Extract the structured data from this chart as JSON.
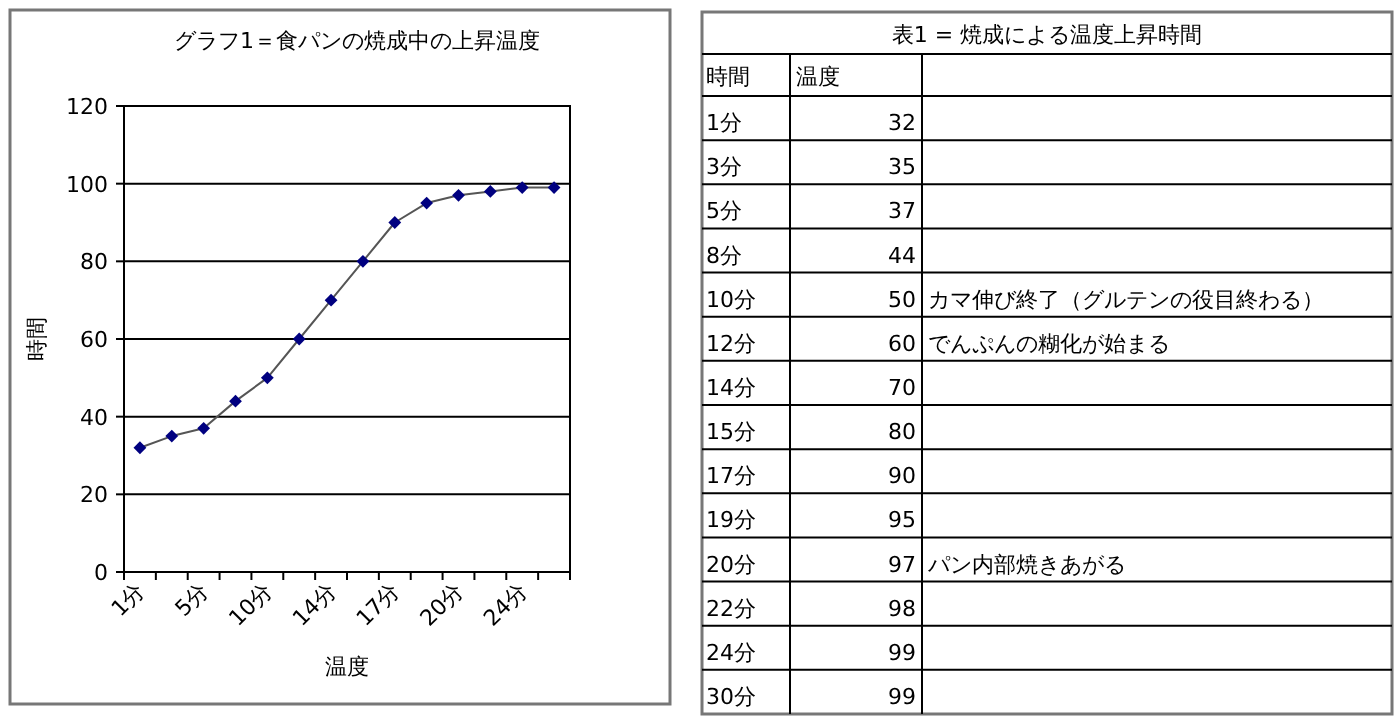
{
  "chart_data": [
    {
      "type": "line",
      "title": "グラフ1＝食パンの焼成中の上昇温度",
      "xlabel": "温度",
      "ylabel": "時間",
      "categories": [
        "1分",
        null,
        "5分",
        null,
        "10分",
        null,
        "14分",
        null,
        "17分",
        null,
        "20分",
        null,
        "24分",
        null
      ],
      "series": [
        {
          "color": "#000080",
          "values": [
            32,
            35,
            37,
            44,
            50,
            60,
            70,
            80,
            90,
            95,
            97,
            98,
            99,
            99
          ]
        }
      ],
      "ylim": [
        0,
        120
      ],
      "yticks": [
        0,
        20,
        40,
        60,
        80,
        100,
        120
      ],
      "grid": "y",
      "marker": "diamond",
      "line_style": "solid"
    },
    {
      "type": "other",
      "title": "表1 = 焼成による温度上昇時間",
      "xlabel": "時間",
      "ylabel": "温度",
      "categories": [
        "1分",
        "3分",
        "5分",
        "8分",
        "10分",
        "12分",
        "14分",
        "15分",
        "17分",
        "19分",
        "20分",
        "22分",
        "24分",
        "30分"
      ],
      "values": [
        32,
        35,
        37,
        44,
        50,
        60,
        70,
        80,
        90,
        95,
        97,
        98,
        99,
        99
      ],
      "data_labels": true,
      "annotations": [
        {
          "text": "カマ伸び終了（グルテンの役目終わる）",
          "x": "10分"
        },
        {
          "text": "でんぷんの糊化が始まる",
          "x": "12分"
        },
        {
          "text": "パン内部焼きあがる",
          "x": "20分"
        }
      ]
    }
  ]
}
